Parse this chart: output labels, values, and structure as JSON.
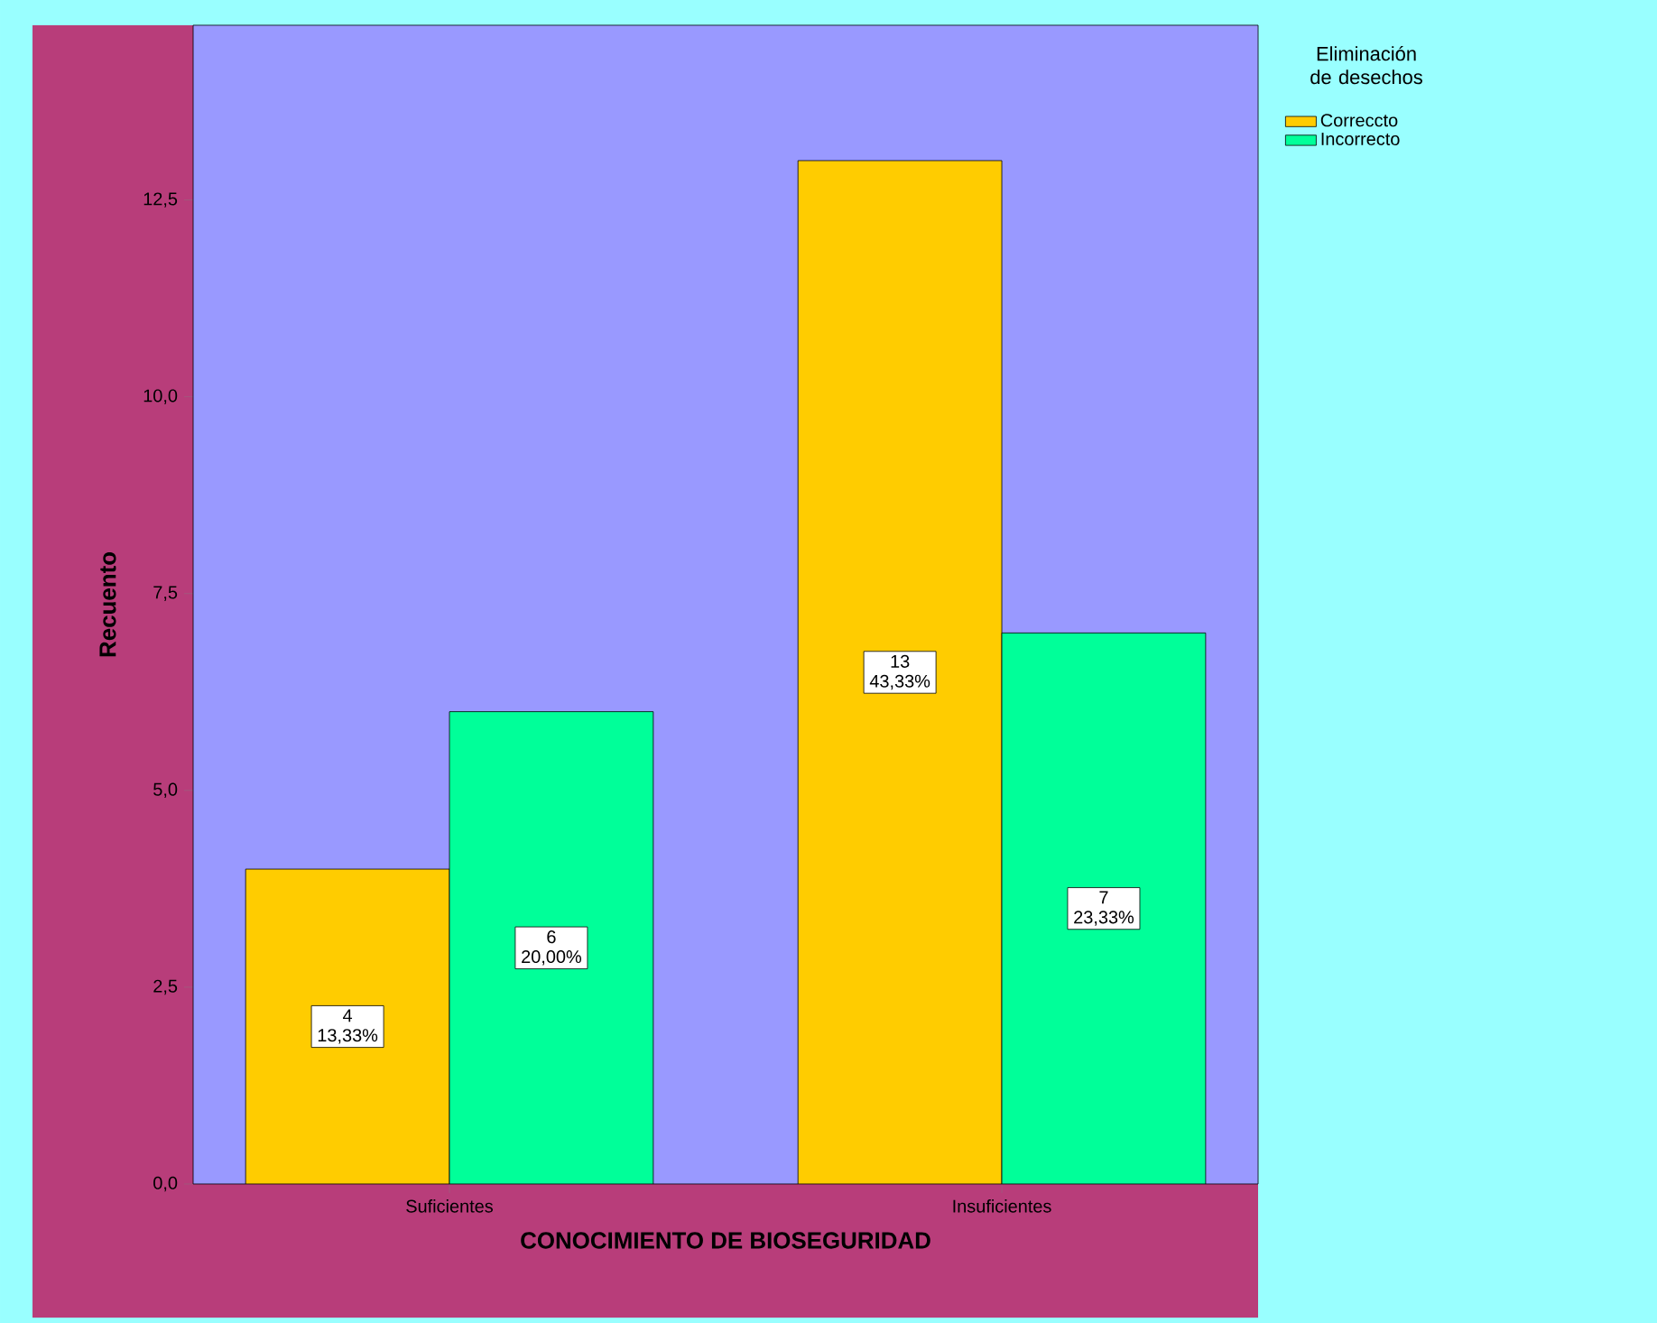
{
  "chart_data": {
    "type": "bar",
    "xlabel": "CONOCIMIENTO DE BIOSEGURIDAD",
    "ylabel": "Recuento",
    "legend_title": "Eliminación de desechos",
    "legend": "top right",
    "categories": [
      "Suficientes",
      "Insuficientes"
    ],
    "series": [
      {
        "name": "Correccto",
        "color": "#ffcc00",
        "values": [
          4,
          13
        ],
        "value_labels": [
          "4 13,33%",
          "13 43,33%"
        ]
      },
      {
        "name": "Incorrecto",
        "color": "#00ff99",
        "values": [
          6,
          7
        ],
        "value_labels": [
          "6 20,00%",
          "7 23,33%"
        ]
      }
    ],
    "ylim": [
      0,
      14.72
    ],
    "yticks": [
      {
        "value": 0,
        "label": "0,0"
      },
      {
        "value": 2.5,
        "label": "2,5"
      },
      {
        "value": 5,
        "label": "5,0"
      },
      {
        "value": 7.5,
        "label": "7,5"
      },
      {
        "value": 10,
        "label": "10,0"
      },
      {
        "value": 12.5,
        "label": "12,5"
      }
    ]
  }
}
